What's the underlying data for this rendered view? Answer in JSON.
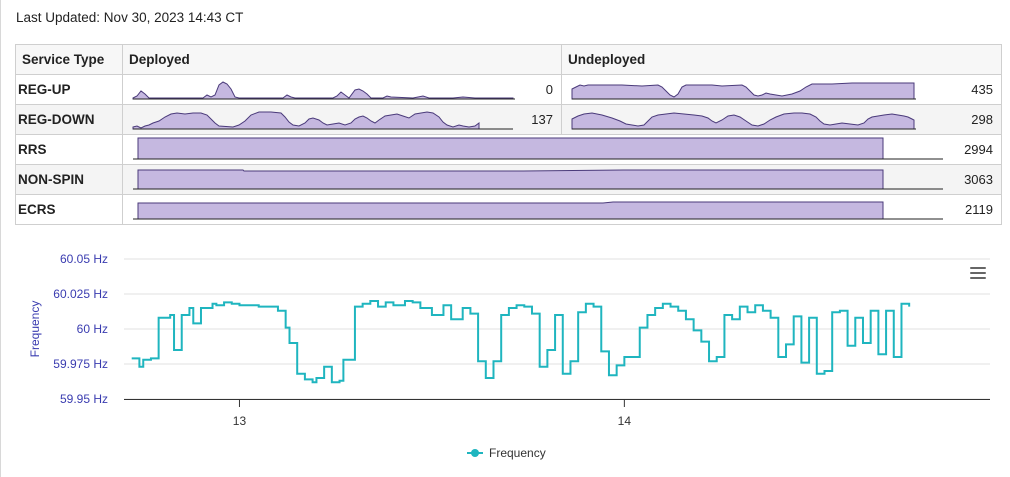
{
  "last_updated": "Last Updated: Nov 30, 2023 14:43 CT",
  "table": {
    "headers": [
      "Service Type",
      "Deployed",
      "Undeployed"
    ],
    "rows": [
      {
        "type": "REG-UP",
        "deployed": "0",
        "undeployed": "435"
      },
      {
        "type": "REG-DOWN",
        "deployed": "137",
        "undeployed": "298"
      },
      {
        "type": "RRS",
        "total": "2994"
      },
      {
        "type": "NON-SPIN",
        "total": "3063"
      },
      {
        "type": "ECRS",
        "total": "2119"
      }
    ]
  },
  "colors": {
    "spark_fill": "#c5b8e0",
    "spark_stroke": "#4a3a7a",
    "line": "#1fb5bf",
    "axis_label": "#3a3cb0"
  },
  "chart_data": {
    "type": "line",
    "title": "",
    "ylabel": "Frequency",
    "xlabel": "",
    "ylim": [
      59.95,
      60.05
    ],
    "yticks": [
      59.95,
      59.975,
      60,
      60.025,
      60.05
    ],
    "ytick_labels": [
      "59.95 Hz",
      "59.975 Hz",
      "60 Hz",
      "60.025 Hz",
      "60.05 Hz"
    ],
    "x_range": [
      12.7,
      14.95
    ],
    "xticks": [
      13,
      14
    ],
    "xtick_labels": [
      "13",
      "14"
    ],
    "legend": "Frequency",
    "series": [
      {
        "name": "Frequency",
        "x": [
          12.72,
          12.74,
          12.75,
          12.77,
          12.79,
          12.82,
          12.83,
          12.85,
          12.87,
          12.88,
          12.9,
          12.93,
          12.94,
          12.96,
          12.98,
          13.0,
          13.05,
          13.1,
          13.12,
          13.13,
          13.15,
          13.17,
          13.19,
          13.2,
          13.22,
          13.24,
          13.26,
          13.27,
          13.3,
          13.32,
          13.34,
          13.36,
          13.38,
          13.4,
          13.43,
          13.45,
          13.47,
          13.5,
          13.53,
          13.55,
          13.58,
          13.6,
          13.62,
          13.64,
          13.66,
          13.68,
          13.7,
          13.72,
          13.74,
          13.76,
          13.78,
          13.8,
          13.82,
          13.84,
          13.86,
          13.88,
          13.9,
          13.92,
          13.94,
          13.96,
          13.98,
          14.0,
          14.02,
          14.04,
          14.06,
          14.08,
          14.1,
          14.12,
          14.14,
          14.16,
          14.18,
          14.2,
          14.22,
          14.24,
          14.26,
          14.28,
          14.3,
          14.32,
          14.34,
          14.36,
          14.38,
          14.4,
          14.42,
          14.44,
          14.46,
          14.48,
          14.5,
          14.52,
          14.54,
          14.56,
          14.58,
          14.6,
          14.62,
          14.64,
          14.66,
          14.68,
          14.7,
          14.72,
          14.74
        ],
        "values": [
          59.979,
          59.973,
          59.978,
          59.979,
          60.008,
          60.01,
          59.985,
          60.01,
          60.015,
          60.004,
          60.015,
          60.018,
          60.017,
          60.019,
          60.018,
          60.017,
          60.016,
          60.013,
          60.001,
          59.99,
          59.968,
          59.964,
          59.962,
          59.965,
          59.973,
          59.962,
          59.963,
          59.978,
          60.016,
          60.018,
          60.02,
          60.016,
          60.019,
          60.017,
          60.02,
          60.019,
          60.015,
          60.01,
          60.017,
          60.007,
          60.015,
          60.011,
          59.977,
          59.965,
          59.977,
          60.01,
          60.015,
          60.017,
          60.016,
          60.011,
          59.973,
          59.985,
          60.01,
          59.968,
          59.977,
          60.012,
          60.018,
          60.016,
          59.984,
          59.967,
          59.974,
          59.98,
          59.98,
          60.001,
          60.01,
          60.015,
          60.018,
          60.016,
          60.013,
          60.007,
          59.999,
          59.991,
          59.977,
          59.98,
          60.01,
          60.007,
          60.016,
          60.012,
          60.017,
          60.013,
          60.008,
          59.98,
          59.989,
          60.009,
          59.976,
          60.008,
          59.968,
          59.97,
          60.012,
          60.013,
          59.988,
          60.008,
          59.99,
          60.013,
          59.982,
          60.013,
          59.98,
          60.018,
          60.016
        ]
      }
    ]
  }
}
